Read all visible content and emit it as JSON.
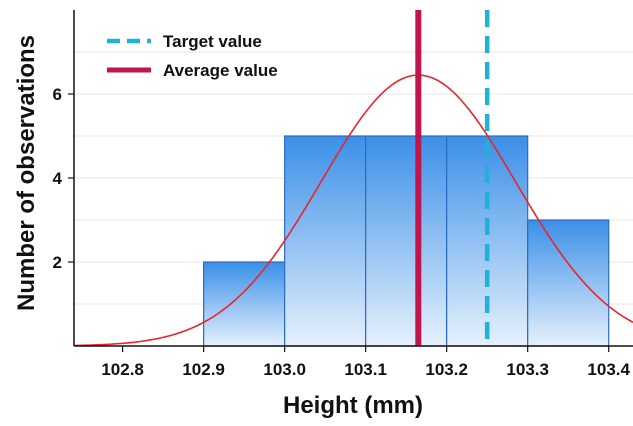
{
  "chart_data": {
    "type": "bar",
    "title": "",
    "xlabel": "Height (mm)",
    "ylabel": "Number of observations",
    "xlim": [
      102.74,
      103.43
    ],
    "ylim": [
      0,
      8.0
    ],
    "x_ticks": [
      "102.8",
      "102.9",
      "103.0",
      "103.1",
      "103.2",
      "103.3",
      "103.4"
    ],
    "y_ticks": [
      "2",
      "4",
      "6"
    ],
    "bins": [
      {
        "start": 102.9,
        "end": 103.0,
        "count": 2
      },
      {
        "start": 103.0,
        "end": 103.1,
        "count": 5
      },
      {
        "start": 103.1,
        "end": 103.2,
        "count": 5
      },
      {
        "start": 103.2,
        "end": 103.3,
        "count": 5
      },
      {
        "start": 103.3,
        "end": 103.4,
        "count": 3
      }
    ],
    "normal_curve": {
      "mean": 103.165,
      "sd": 0.12,
      "peak": 6.45,
      "color": "#e8242c"
    },
    "reference_lines": [
      {
        "name": "Target value",
        "x": 103.25,
        "style": "dashed",
        "color": "#1fb2d6"
      },
      {
        "name": "Average value",
        "x": 103.165,
        "style": "solid",
        "color": "#c0144c"
      }
    ],
    "legend": {
      "placement": "top-left",
      "entries": [
        "Target value",
        "Average value"
      ]
    },
    "grid": {
      "y": true,
      "x": false
    },
    "colors": {
      "bar_top": "#3b8fe8",
      "bar_bottom": "#e6f1fc",
      "bar_edge": "#2a6cc4"
    }
  }
}
